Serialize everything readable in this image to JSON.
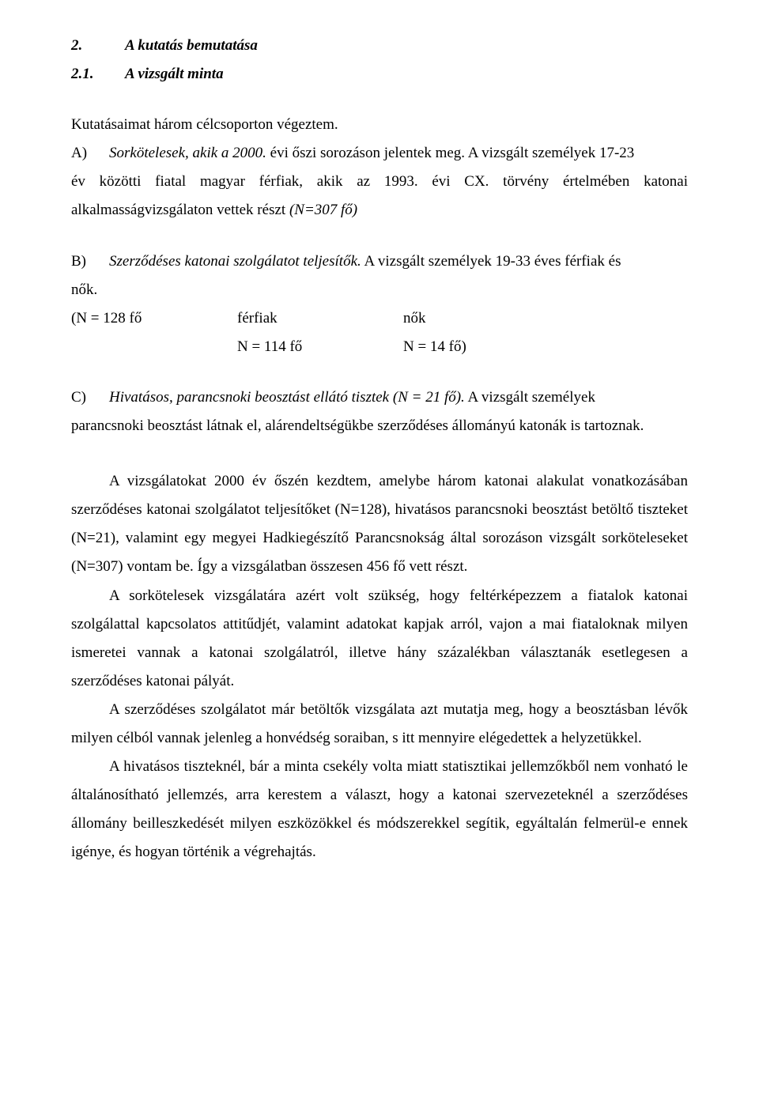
{
  "headings": {
    "h2_num": "2.",
    "h2_text": "A kutatás bemutatása",
    "h21_num": "2.1.",
    "h21_text": "A vizsgált minta"
  },
  "intro": "Kutatásaimat három célcsoporton végeztem.",
  "groupA": {
    "letter": "A)",
    "line1_italic": "Sorkötelesek, akik a 2000.",
    "line1_rest": " évi őszi sorozáson jelentek meg. A vizsgált személyek 17-23",
    "line2": "év közötti fiatal magyar férfiak, akik az 1993. évi CX. törvény értelmében katonai alkalmasságvizsgálaton vettek részt ",
    "line2_italic": "(N=307 fő)"
  },
  "groupB": {
    "letter": "B)",
    "italic": "Szerződéses katonai szolgálatot teljesítők.",
    "rest": " A vizsgált személyek 19-33 éves férfiak és",
    "nok": "nők.",
    "row1_c1": "(N = 128 fő",
    "row1_c2": "férfiak",
    "row1_c3": "nők",
    "row2_c1": "",
    "row2_c2": "N = 114 fő",
    "row2_c3": "N = 14 fő)"
  },
  "groupC": {
    "letter": "C)",
    "italic": "Hivatásos, parancsnoki beosztást ellátó tisztek (N = 21 fő).",
    "rest": " A vizsgált személyek",
    "line2": "parancsnoki beosztást látnak el, alárendeltségükbe szerződéses állományú katonák is tartoznak."
  },
  "para1": "A vizsgálatokat 2000 év őszén kezdtem, amelybe három katonai alakulat vonatkozásában szerződéses katonai szolgálatot teljesítőket (N=128), hivatásos parancsnoki beosztást betöltő tiszteket (N=21), valamint egy megyei Hadkiegészítő Parancsnokság által sorozáson vizsgált sorköteleseket (N=307) vontam be. Így a vizsgálatban összesen 456 fő vett részt.",
  "para2": "A sorkötelesek vizsgálatára azért volt szükség, hogy feltérképezzem a fiatalok katonai szolgálattal kapcsolatos attitűdjét, valamint adatokat kapjak arról, vajon a mai fiataloknak milyen ismeretei vannak a katonai szolgálatról, illetve hány százalékban választanák esetlegesen a szerződéses katonai pályát.",
  "para3": "A szerződéses szolgálatot már betöltők vizsgálata azt mutatja meg, hogy a beosztásban lévők milyen célból vannak jelenleg a honvédség soraiban, s itt mennyire elégedettek a helyzetükkel.",
  "para4": "A hivatásos tiszteknél, bár a minta csekély volta miatt statisztikai jellemzőkből nem vonható le általánosítható jellemzés, arra kerestem a választ, hogy a katonai szervezeteknél a szerződéses állomány beilleszkedését milyen eszközökkel és módszerekkel segítik, egyáltalán felmerül-e ennek igénye, és hogyan történik a végrehajtás."
}
